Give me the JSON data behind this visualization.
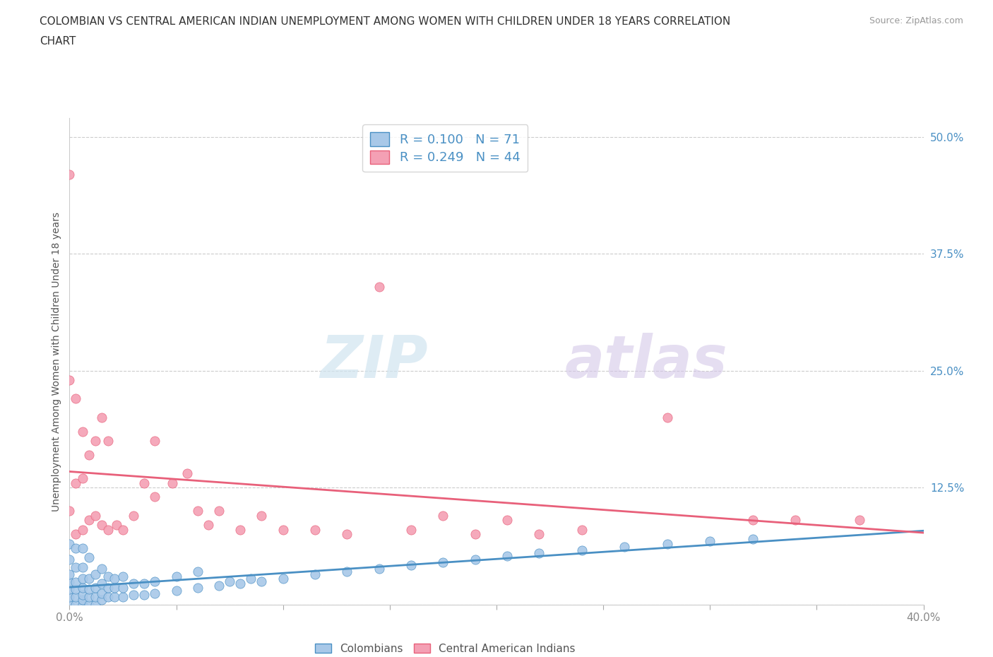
{
  "title_line1": "COLOMBIAN VS CENTRAL AMERICAN INDIAN UNEMPLOYMENT AMONG WOMEN WITH CHILDREN UNDER 18 YEARS CORRELATION",
  "title_line2": "CHART",
  "source": "Source: ZipAtlas.com",
  "ylabel": "Unemployment Among Women with Children Under 18 years",
  "xlim": [
    0.0,
    0.4
  ],
  "ylim": [
    0.0,
    0.52
  ],
  "yticks": [
    0.0,
    0.125,
    0.25,
    0.375,
    0.5
  ],
  "ytick_labels": [
    "",
    "12.5%",
    "25.0%",
    "37.5%",
    "50.0%"
  ],
  "xticks": [
    0.0,
    0.05,
    0.1,
    0.15,
    0.2,
    0.25,
    0.3,
    0.35,
    0.4
  ],
  "xtick_labels": [
    "0.0%",
    "",
    "",
    "",
    "",
    "",
    "",
    "",
    "40.0%"
  ],
  "colombian_color": "#a8c8e8",
  "central_american_color": "#f4a0b4",
  "colombian_line_color": "#4a90c4",
  "central_american_line_color": "#e8607a",
  "colombian_R": 0.1,
  "colombian_N": 71,
  "central_american_R": 0.249,
  "central_american_N": 44,
  "watermark_zip": "ZIP",
  "watermark_atlas": "atlas",
  "background_color": "#ffffff",
  "colombian_scatter_x": [
    0.0,
    0.0,
    0.0,
    0.0,
    0.0,
    0.0,
    0.0,
    0.003,
    0.003,
    0.003,
    0.003,
    0.003,
    0.003,
    0.006,
    0.006,
    0.006,
    0.006,
    0.006,
    0.006,
    0.006,
    0.009,
    0.009,
    0.009,
    0.009,
    0.009,
    0.012,
    0.012,
    0.012,
    0.012,
    0.015,
    0.015,
    0.015,
    0.015,
    0.018,
    0.018,
    0.018,
    0.021,
    0.021,
    0.021,
    0.025,
    0.025,
    0.025,
    0.03,
    0.03,
    0.035,
    0.035,
    0.04,
    0.04,
    0.05,
    0.05,
    0.06,
    0.06,
    0.07,
    0.075,
    0.08,
    0.085,
    0.09,
    0.1,
    0.115,
    0.13,
    0.145,
    0.16,
    0.175,
    0.19,
    0.205,
    0.22,
    0.24,
    0.26,
    0.28,
    0.3,
    0.32
  ],
  "colombian_scatter_y": [
    0.0,
    0.008,
    0.016,
    0.024,
    0.032,
    0.048,
    0.065,
    0.0,
    0.008,
    0.016,
    0.024,
    0.04,
    0.06,
    0.0,
    0.005,
    0.01,
    0.018,
    0.028,
    0.04,
    0.06,
    0.0,
    0.008,
    0.016,
    0.028,
    0.05,
    0.0,
    0.008,
    0.018,
    0.032,
    0.005,
    0.012,
    0.022,
    0.038,
    0.008,
    0.018,
    0.03,
    0.008,
    0.018,
    0.028,
    0.008,
    0.018,
    0.03,
    0.01,
    0.022,
    0.01,
    0.022,
    0.012,
    0.025,
    0.015,
    0.03,
    0.018,
    0.035,
    0.02,
    0.025,
    0.022,
    0.028,
    0.025,
    0.028,
    0.032,
    0.035,
    0.038,
    0.042,
    0.045,
    0.048,
    0.052,
    0.055,
    0.058,
    0.062,
    0.065,
    0.068,
    0.07
  ],
  "central_american_scatter_x": [
    0.0,
    0.0,
    0.0,
    0.003,
    0.003,
    0.003,
    0.006,
    0.006,
    0.006,
    0.009,
    0.009,
    0.012,
    0.012,
    0.015,
    0.015,
    0.018,
    0.018,
    0.022,
    0.025,
    0.03,
    0.035,
    0.04,
    0.04,
    0.048,
    0.055,
    0.06,
    0.065,
    0.07,
    0.08,
    0.09,
    0.1,
    0.115,
    0.13,
    0.145,
    0.16,
    0.175,
    0.19,
    0.205,
    0.22,
    0.24,
    0.28,
    0.32,
    0.34,
    0.37
  ],
  "central_american_scatter_y": [
    0.1,
    0.24,
    0.46,
    0.075,
    0.13,
    0.22,
    0.08,
    0.135,
    0.185,
    0.09,
    0.16,
    0.095,
    0.175,
    0.085,
    0.2,
    0.08,
    0.175,
    0.085,
    0.08,
    0.095,
    0.13,
    0.115,
    0.175,
    0.13,
    0.14,
    0.1,
    0.085,
    0.1,
    0.08,
    0.095,
    0.08,
    0.08,
    0.075,
    0.34,
    0.08,
    0.095,
    0.075,
    0.09,
    0.075,
    0.08,
    0.2,
    0.09,
    0.09,
    0.09
  ]
}
